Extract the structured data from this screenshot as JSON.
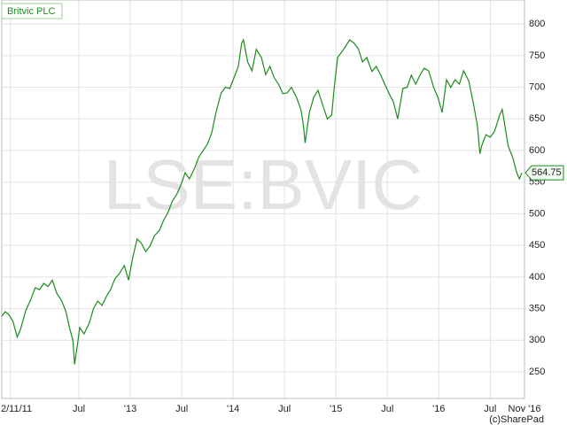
{
  "chart_data": {
    "type": "line",
    "watermark": "LSE:BVIC",
    "credit": "(c)SharePad",
    "x": [
      -1,
      -0.6,
      -0.2,
      0.3,
      0.8,
      1.2,
      1.8,
      2.4,
      2.9,
      3.4,
      3.9,
      4.4,
      4.9,
      5.4,
      6,
      6.5,
      6.9,
      7.3,
      7.5,
      7.8,
      8.1,
      8.6,
      9.2,
      9.7,
      10.2,
      10.7,
      11.2,
      11.7,
      12.2,
      12.7,
      13.3,
      13.8,
      14.3,
      14.8,
      15.3,
      15.8,
      16.3,
      16.8,
      17.4,
      17.9,
      18.4,
      18.9,
      19.4,
      19.9,
      20.4,
      20.9,
      21.5,
      22,
      22.5,
      23,
      23.5,
      24,
      24.6,
      25.1,
      25.6,
      26.1,
      26.6,
      27,
      27.2,
      27.7,
      28.2,
      28.7,
      29.3,
      29.8,
      30.3,
      30.8,
      31.3,
      31.8,
      32.3,
      32.8,
      33.4,
      33.9,
      34.2,
      34.4,
      34.9,
      35.4,
      35.9,
      36.5,
      37,
      37.5,
      37.8,
      38.2,
      38.9,
      39.6,
      40.1,
      40.6,
      41.1,
      41.6,
      42.2,
      42.7,
      43.2,
      43.7,
      44.2,
      44.7,
      45.2,
      45.8,
      46.3,
      46.8,
      47.3,
      47.8,
      48.3,
      48.8,
      49.4,
      49.9,
      50.4,
      50.9,
      51.4,
      51.9,
      52.4,
      52.9,
      53.5,
      54,
      54.5,
      54.8,
      55,
      55.5,
      56,
      56.5,
      57.1,
      57.4,
      58.1,
      58.6,
      59.1,
      59.4,
      59.7
    ],
    "series": [
      {
        "name": "Britvic PLC",
        "color": "#1a8c1a",
        "values": [
          338,
          345,
          341,
          330,
          305,
          318,
          347,
          365,
          383,
          380,
          390,
          385,
          395,
          375,
          362,
          345,
          320,
          300,
          262,
          290,
          320,
          310,
          327,
          350,
          362,
          355,
          369,
          380,
          397,
          405,
          418,
          395,
          432,
          460,
          453,
          440,
          449,
          465,
          474,
          490,
          502,
          520,
          530,
          545,
          565,
          555,
          572,
          590,
          600,
          610,
          628,
          660,
          691,
          700,
          698,
          715,
          733,
          770,
          775,
          740,
          726,
          760,
          747,
          720,
          733,
          715,
          705,
          690,
          691,
          700,
          684,
          665,
          640,
          612,
          660,
          684,
          695,
          670,
          650,
          656,
          700,
          747,
          760,
          775,
          770,
          761,
          740,
          747,
          725,
          733,
          720,
          705,
          690,
          677,
          650,
          698,
          700,
          719,
          705,
          719,
          730,
          726,
          700,
          684,
          660,
          712,
          700,
          712,
          705,
          726,
          710,
          677,
          640,
          595,
          607,
          625,
          621,
          630,
          656,
          665,
          607,
          590,
          565,
          555,
          564.75
        ]
      }
    ],
    "xlim": [
      -1,
      60
    ],
    "xticks": [
      {
        "value": 0,
        "label": "2/11/11"
      },
      {
        "value": 8,
        "label": "Jul"
      },
      {
        "value": 14,
        "label": "'13"
      },
      {
        "value": 20,
        "label": "Jul"
      },
      {
        "value": 26,
        "label": "'14"
      },
      {
        "value": 32,
        "label": "Jul"
      },
      {
        "value": 38,
        "label": "'15"
      },
      {
        "value": 44,
        "label": "Jul"
      },
      {
        "value": 50,
        "label": "'16"
      },
      {
        "value": 56,
        "label": "Jul"
      },
      {
        "value": 60,
        "label": "Nov '16"
      }
    ],
    "ylim": [
      208,
      838
    ],
    "yticks": [
      250,
      300,
      350,
      400,
      450,
      500,
      550,
      600,
      650,
      700,
      750,
      800
    ],
    "grid": true
  }
}
